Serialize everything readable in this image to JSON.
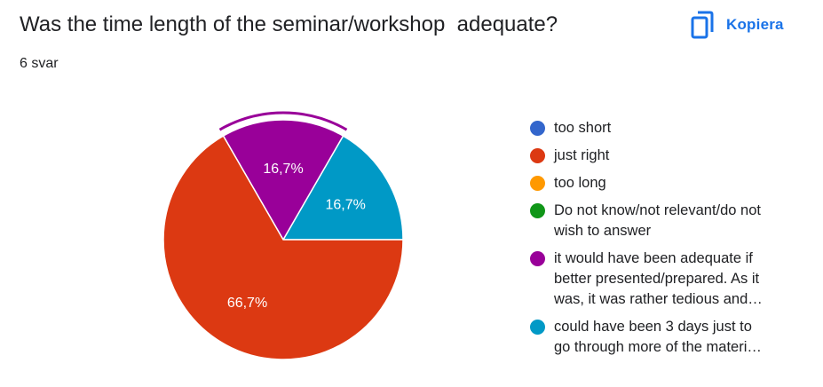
{
  "header": {
    "title": "Was the time length of the seminar/workshop  adequate?",
    "response_count": "6 svar",
    "copy_label": "Kopiera",
    "copy_icon": "copy-icon",
    "accent_color": "#1a73e8"
  },
  "chart_data": {
    "type": "pie",
    "title": "Was the time length of the seminar/workshop  adequate?",
    "labels": [
      "too short",
      "just right",
      "too long",
      "Do not know/not relevant/do not wish to answer",
      "it would have been adequate if better presented/prepared. As it was, it was rather tedious and…",
      "could have been 3 days just to go through more of the materi…"
    ],
    "legend_lines": [
      [
        "too short"
      ],
      [
        "just right"
      ],
      [
        "too long"
      ],
      [
        "Do not know/not relevant/do not",
        "wish to answer"
      ],
      [
        "it would have been adequate if",
        "better presented/prepared. As it",
        "was, it was rather tedious and…"
      ],
      [
        "could have been 3 days just to",
        "go through more of the materi…"
      ]
    ],
    "values": [
      0,
      4,
      0,
      0,
      1,
      1
    ],
    "percent_labels": [
      "",
      "66,7%",
      "",
      "",
      "16,7%",
      "16,7%"
    ],
    "colors": [
      "#3366cc",
      "#dc3912",
      "#ff9900",
      "#109618",
      "#990099",
      "#0099c6"
    ],
    "highlighted_index": 4,
    "legend_position": "right"
  }
}
